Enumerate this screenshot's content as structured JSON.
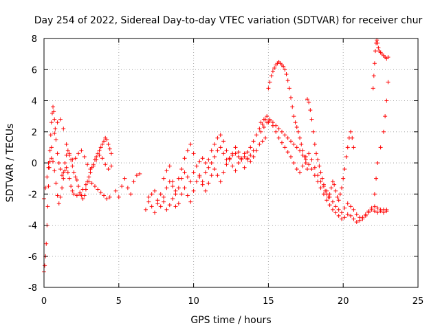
{
  "chart_data": {
    "type": "scatter",
    "title": "Day 254 of 2022, Sidereal Day-to-day VTEC variation (SDTVAR) for receiver chur",
    "xlabel": "GPS time / hours",
    "ylabel": "SDTVAR / TECUs",
    "xlim": [
      0,
      25
    ],
    "ylim": [
      -8,
      8
    ],
    "x_ticks": [
      0,
      5,
      10,
      15,
      20,
      25
    ],
    "y_ticks": [
      -8,
      -6,
      -4,
      -2,
      0,
      2,
      4,
      6,
      8
    ],
    "grid": true,
    "marker": "+",
    "color": "#ff0000",
    "series": [
      {
        "name": "chur",
        "x": [
          0.0,
          0.05,
          0.1,
          0.15,
          0.2,
          0.25,
          0.3,
          0.35,
          0.4,
          0.45,
          0.5,
          0.55,
          0.6,
          0.65,
          0.7,
          0.75,
          0.8,
          0.9,
          1.0,
          1.1,
          1.2,
          1.3,
          1.4,
          1.5,
          1.6,
          1.7,
          1.8,
          1.9,
          2.0,
          2.1,
          2.2,
          2.3,
          2.4,
          2.5,
          2.6,
          2.7,
          2.8,
          2.9,
          3.0,
          3.1,
          3.2,
          3.3,
          3.4,
          3.5,
          3.6,
          3.7,
          3.8,
          3.9,
          4.0,
          4.1,
          4.2,
          4.3,
          4.4,
          4.5,
          0.0,
          0.1,
          0.2,
          0.3,
          0.4,
          0.5,
          0.6,
          0.7,
          0.8,
          0.9,
          1.0,
          1.1,
          1.2,
          1.3,
          1.4,
          1.5,
          1.6,
          1.7,
          1.8,
          1.9,
          2.0,
          2.2,
          2.4,
          2.6,
          2.8,
          3.0,
          3.2,
          3.4,
          3.6,
          3.8,
          4.0,
          4.2,
          4.4,
          0.3,
          0.5,
          0.7,
          0.9,
          1.1,
          1.3,
          1.5,
          1.7,
          1.9,
          2.1,
          2.3,
          2.5,
          2.7,
          2.9,
          3.1,
          3.3,
          3.5,
          3.7,
          3.9,
          4.1,
          4.3,
          4.5,
          4.8,
          5.0,
          5.2,
          5.4,
          5.6,
          5.8,
          6.0,
          6.2,
          6.4,
          6.8,
          7.0,
          7.2,
          7.4,
          7.6,
          7.8,
          8.0,
          8.2,
          8.4,
          8.6,
          8.8,
          9.0,
          9.2,
          9.4,
          9.6,
          9.8,
          10.0,
          10.2,
          10.4,
          10.6,
          10.8,
          11.0,
          11.2,
          11.4,
          11.6,
          11.8,
          12.0,
          12.2,
          12.4,
          12.6,
          12.8,
          13.0,
          13.2,
          13.4,
          13.6,
          13.8,
          14.0,
          14.2,
          14.4,
          14.6,
          14.8,
          15.0,
          7.0,
          7.2,
          7.4,
          7.6,
          7.8,
          8.0,
          8.2,
          8.4,
          8.6,
          8.8,
          9.0,
          9.2,
          9.4,
          9.6,
          9.8,
          10.0,
          10.2,
          10.4,
          10.6,
          10.8,
          11.0,
          11.2,
          11.4,
          11.6,
          11.8,
          12.0,
          12.2,
          12.4,
          12.6,
          12.8,
          13.0,
          13.2,
          13.4,
          13.6,
          13.8,
          14.0,
          14.2,
          14.4,
          14.6,
          14.8,
          8.0,
          8.2,
          8.4,
          8.6,
          8.8,
          9.0,
          9.2,
          9.4,
          9.6,
          9.8,
          10.0,
          10.2,
          10.4,
          10.6,
          10.8,
          11.0,
          11.2,
          11.4,
          11.6,
          11.8,
          12.0,
          12.2,
          12.4,
          12.6,
          12.8,
          13.0,
          13.2,
          13.4,
          13.6,
          13.8,
          14.0,
          15.0,
          15.1,
          15.2,
          15.3,
          15.4,
          15.5,
          15.6,
          15.7,
          15.8,
          15.9,
          16.0,
          16.1,
          16.2,
          16.3,
          16.4,
          16.5,
          16.6,
          16.7,
          16.8,
          16.9,
          17.0,
          17.1,
          17.2,
          17.3,
          17.4,
          17.5,
          17.6,
          14.5,
          14.7,
          14.9,
          15.1,
          15.3,
          15.5,
          15.7,
          15.9,
          16.1,
          16.3,
          16.5,
          16.7,
          16.9,
          17.1,
          17.3,
          17.5,
          17.7,
          17.9,
          18.1,
          18.3,
          18.5,
          18.7,
          18.9,
          19.1,
          19.3,
          19.5,
          19.7,
          19.9,
          20.1,
          20.3,
          20.5,
          20.7,
          20.9,
          21.1,
          21.3,
          21.5,
          21.7,
          21.9,
          22.1,
          22.3,
          22.5,
          22.7,
          22.9,
          14.5,
          14.7,
          14.9,
          15.1,
          15.3,
          15.5,
          15.7,
          15.9,
          16.1,
          16.3,
          16.5,
          16.7,
          16.9,
          17.1,
          17.3,
          17.5,
          17.7,
          17.9,
          18.1,
          18.3,
          18.5,
          18.7,
          18.9,
          19.1,
          19.3,
          19.5,
          19.7,
          19.9,
          20.1,
          20.3,
          20.5,
          20.7,
          20.9,
          21.1,
          21.3,
          21.5,
          21.7,
          21.9,
          22.1,
          22.3,
          22.5,
          22.7,
          22.9,
          17.6,
          17.7,
          17.8,
          17.9,
          18.0,
          18.1,
          18.2,
          18.3,
          18.4,
          18.5,
          18.6,
          18.7,
          18.8,
          18.9,
          19.0,
          19.1,
          19.2,
          19.3,
          19.4,
          19.5,
          19.6,
          19.7,
          19.8,
          19.9,
          20.0,
          20.1,
          20.2,
          20.3,
          20.4,
          20.5,
          20.6,
          20.7,
          22.0,
          22.05,
          22.1,
          22.15,
          22.2,
          22.25,
          22.3,
          22.35,
          22.4,
          22.5,
          22.6,
          22.7,
          22.8,
          22.9,
          23.0,
          22.1,
          22.2,
          22.3,
          22.5,
          22.7,
          22.8,
          22.9,
          23.0
        ],
        "y": [
          -7.0,
          -6.6,
          -6.0,
          -5.2,
          -4.0,
          -2.8,
          -1.5,
          -0.3,
          0.8,
          1.8,
          2.6,
          3.2,
          3.6,
          3.3,
          2.8,
          2.2,
          1.5,
          0.6,
          0.0,
          -0.4,
          -0.8,
          -0.6,
          0.0,
          0.5,
          0.8,
          0.6,
          0.2,
          -0.2,
          -0.6,
          -0.9,
          -1.1,
          -1.5,
          -1.9,
          -2.1,
          -2.3,
          -2.1,
          -1.7,
          -1.2,
          -0.9,
          -0.6,
          -0.3,
          -0.1,
          0.2,
          0.4,
          0.6,
          0.8,
          1.0,
          1.2,
          1.4,
          1.6,
          1.5,
          1.2,
          0.9,
          0.6,
          -2.3,
          -1.6,
          -0.9,
          -0.3,
          0.1,
          0.3,
          0.1,
          -0.5,
          -1.3,
          -2.1,
          -2.6,
          -2.2,
          -1.6,
          -1.0,
          -0.5,
          -0.3,
          -0.6,
          -1.0,
          -1.5,
          -1.8,
          -2.0,
          -2.1,
          -2.0,
          -1.7,
          -1.4,
          -1.2,
          -1.3,
          -1.5,
          -1.7,
          -1.9,
          -2.1,
          -2.3,
          -2.2,
          0.0,
          1.0,
          1.9,
          2.6,
          2.8,
          2.2,
          1.2,
          0.5,
          0.2,
          0.3,
          0.6,
          0.8,
          0.4,
          -0.1,
          -0.4,
          -0.2,
          0.2,
          0.5,
          0.3,
          -0.1,
          -0.4,
          -0.2,
          -1.8,
          -2.2,
          -1.5,
          -1.0,
          -1.6,
          -2.0,
          -1.2,
          -0.8,
          -0.7,
          -3.0,
          -2.5,
          -2.0,
          -1.8,
          -2.4,
          -2.8,
          -2.2,
          -1.6,
          -1.2,
          -1.5,
          -2.0,
          -1.6,
          -1.0,
          -0.6,
          -0.9,
          -1.2,
          -0.6,
          -0.2,
          0.1,
          0.3,
          0.0,
          -0.3,
          0.0,
          0.4,
          0.8,
          1.0,
          0.6,
          0.2,
          0.3,
          0.5,
          0.6,
          0.4,
          0.2,
          0.4,
          0.7,
          1.0,
          1.4,
          1.8,
          2.2,
          2.5,
          2.8,
          2.6,
          -2.2,
          -2.8,
          -3.2,
          -2.6,
          -2.0,
          -2.5,
          -3.0,
          -2.7,
          -2.3,
          -2.8,
          -2.6,
          -2.0,
          -1.6,
          -2.1,
          -2.5,
          -1.8,
          -1.2,
          -0.9,
          -1.4,
          -1.8,
          -1.3,
          -0.8,
          -0.4,
          -0.8,
          -1.2,
          -0.6,
          -0.1,
          0.2,
          -0.2,
          -0.5,
          0.0,
          0.3,
          0.6,
          0.3,
          0.1,
          0.4,
          0.8,
          1.2,
          1.4,
          1.6,
          -1.0,
          -0.5,
          -0.2,
          -1.2,
          -1.8,
          -1.0,
          -0.4,
          0.3,
          0.8,
          1.2,
          0.6,
          -0.2,
          -0.8,
          -1.2,
          -0.6,
          0.2,
          0.8,
          1.2,
          1.6,
          1.8,
          1.4,
          0.8,
          0.3,
          0.6,
          1.0,
          0.7,
          0.2,
          -0.3,
          0.2,
          0.5,
          0.8,
          4.8,
          5.2,
          5.6,
          5.9,
          6.1,
          6.3,
          6.4,
          6.5,
          6.4,
          6.3,
          6.2,
          6.0,
          5.7,
          5.3,
          4.8,
          4.2,
          3.6,
          3.0,
          2.6,
          2.3,
          2.0,
          1.6,
          1.2,
          0.8,
          0.4,
          0.0,
          -0.4,
          2.0,
          2.3,
          2.6,
          2.7,
          2.6,
          2.4,
          2.2,
          2.0,
          1.8,
          1.6,
          1.4,
          1.2,
          1.0,
          0.8,
          0.5,
          0.2,
          -0.1,
          -0.4,
          -0.8,
          -1.2,
          -1.6,
          -2.0,
          -2.4,
          -2.7,
          -3.0,
          -3.2,
          -3.4,
          -3.6,
          -3.5,
          -3.3,
          -3.4,
          -3.6,
          -3.8,
          -3.7,
          -3.5,
          -3.3,
          -3.2,
          -3.0,
          -3.1,
          -3.2,
          -3.1,
          -3.0,
          -3.1,
          2.6,
          2.8,
          3.0,
          2.8,
          2.4,
          2.0,
          1.6,
          1.3,
          1.0,
          0.7,
          0.4,
          0.0,
          -0.4,
          -0.6,
          -0.2,
          0.4,
          0.6,
          0.2,
          -0.3,
          -0.8,
          -1.2,
          -1.5,
          -1.8,
          -2.2,
          -2.5,
          -2.8,
          -3.0,
          -3.2,
          -2.9,
          -2.6,
          -2.8,
          -3.0,
          -3.3,
          -3.5,
          -3.6,
          -3.4,
          -3.1,
          -2.9,
          -2.8,
          -2.9,
          -3.0,
          -3.2,
          -3.0,
          4.1,
          3.9,
          3.4,
          2.8,
          2.0,
          1.2,
          0.6,
          0.2,
          -0.2,
          -0.6,
          -1.0,
          -1.4,
          -1.8,
          -2.0,
          -2.2,
          -2.0,
          -1.6,
          -1.2,
          -1.4,
          -1.8,
          -2.2,
          -2.4,
          -2.0,
          -1.6,
          -1.0,
          -0.4,
          0.4,
          1.0,
          1.6,
          2.0,
          1.6,
          1.0,
          4.8,
          5.6,
          6.4,
          7.2,
          7.7,
          7.9,
          7.7,
          7.4,
          7.2,
          7.1,
          7.0,
          6.9,
          6.8,
          6.7,
          6.8,
          -2.0,
          -1.0,
          0.0,
          1.0,
          2.0,
          3.0,
          4.0,
          5.2
        ]
      }
    ]
  }
}
